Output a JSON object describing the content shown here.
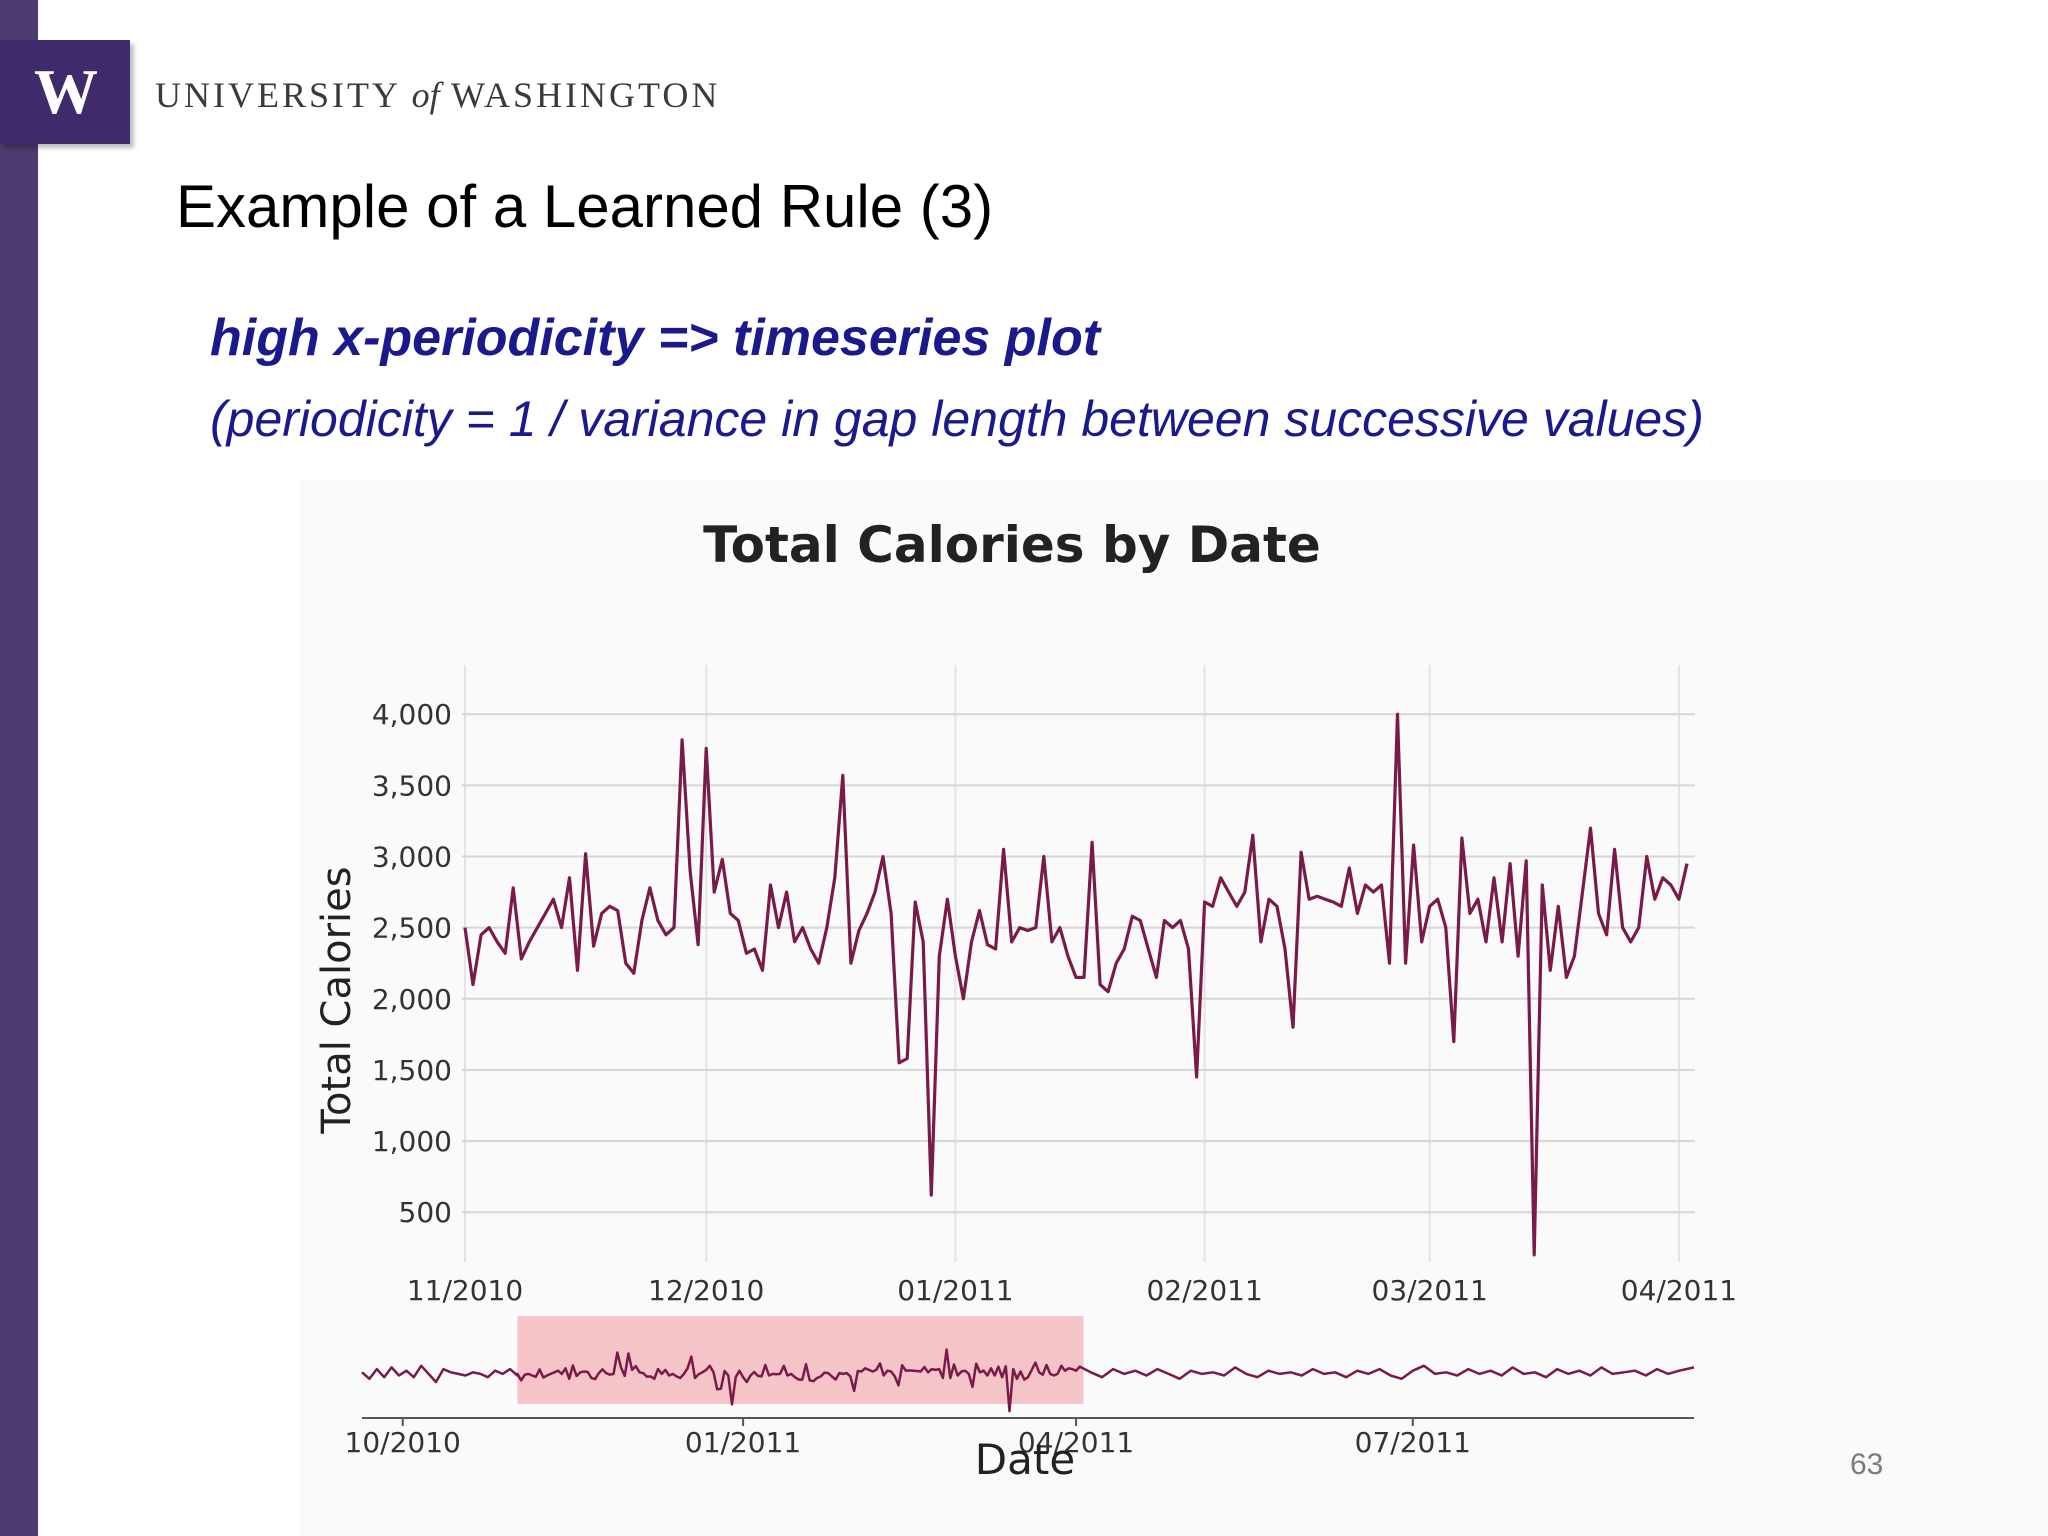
{
  "header": {
    "logo_letter": "W",
    "university_part1": "UNIVERSITY",
    "university_of": "of",
    "university_part2": "WASHINGTON"
  },
  "slide": {
    "title": "Example of a Learned Rule (3)",
    "rule": "high x-periodicity => timeseries plot",
    "note": "(periodicity = 1 / variance in gap length between successive values)",
    "page_number": "63"
  },
  "colors": {
    "sidebar": "#4b3b6e",
    "logo_bg": "#3f2a6b",
    "rule_text": "#1a1a8c",
    "series_line": "#7a1a4a",
    "brush_highlight": "#f5c4c8"
  },
  "chart_data": [
    {
      "type": "line",
      "title": "Total Calories by Date",
      "xlabel": "",
      "ylabel": "Total Calories",
      "x_tick_labels": [
        "11/2010",
        "12/2010",
        "01/2011",
        "02/2011",
        "03/2011",
        "04/2011"
      ],
      "y_ticks": [
        500,
        1000,
        1500,
        2000,
        2500,
        3000,
        3500,
        4000
      ],
      "y_tick_labels": [
        "500",
        "1,000",
        "1,500",
        "2,000",
        "2,500",
        "3,000",
        "3,500",
        "4,000"
      ],
      "ylim": [
        150,
        4100
      ],
      "x_domain": [
        "2010-11-01",
        "2011-04-03"
      ],
      "grid": true,
      "series": [
        {
          "values": [
            [
              "2010-11-01",
              2500
            ],
            [
              "2010-11-02",
              2100
            ],
            [
              "2010-11-03",
              2450
            ],
            [
              "2010-11-04",
              2500
            ],
            [
              "2010-11-05",
              2400
            ],
            [
              "2010-11-06",
              2320
            ],
            [
              "2010-11-07",
              2780
            ],
            [
              "2010-11-08",
              2280
            ],
            [
              "2010-11-09",
              2400
            ],
            [
              "2010-11-10",
              2500
            ],
            [
              "2010-11-11",
              2600
            ],
            [
              "2010-11-12",
              2700
            ],
            [
              "2010-11-13",
              2500
            ],
            [
              "2010-11-14",
              2850
            ],
            [
              "2010-11-15",
              2200
            ],
            [
              "2010-11-16",
              3020
            ],
            [
              "2010-11-17",
              2370
            ],
            [
              "2010-11-18",
              2600
            ],
            [
              "2010-11-19",
              2650
            ],
            [
              "2010-11-20",
              2620
            ],
            [
              "2010-11-21",
              2250
            ],
            [
              "2010-11-22",
              2180
            ],
            [
              "2010-11-23",
              2550
            ],
            [
              "2010-11-24",
              2780
            ],
            [
              "2010-11-25",
              2550
            ],
            [
              "2010-11-26",
              2450
            ],
            [
              "2010-11-27",
              2500
            ],
            [
              "2010-11-28",
              3820
            ],
            [
              "2010-11-29",
              2900
            ],
            [
              "2010-11-30",
              2380
            ],
            [
              "2010-12-01",
              3760
            ],
            [
              "2010-12-02",
              2750
            ],
            [
              "2010-12-03",
              2980
            ],
            [
              "2010-12-04",
              2600
            ],
            [
              "2010-12-05",
              2550
            ],
            [
              "2010-12-06",
              2320
            ],
            [
              "2010-12-07",
              2350
            ],
            [
              "2010-12-08",
              2200
            ],
            [
              "2010-12-09",
              2800
            ],
            [
              "2010-12-10",
              2500
            ],
            [
              "2010-12-11",
              2750
            ],
            [
              "2010-12-12",
              2400
            ],
            [
              "2010-12-13",
              2500
            ],
            [
              "2010-12-14",
              2350
            ],
            [
              "2010-12-15",
              2250
            ],
            [
              "2010-12-16",
              2500
            ],
            [
              "2010-12-17",
              2850
            ],
            [
              "2010-12-18",
              3570
            ],
            [
              "2010-12-19",
              2250
            ],
            [
              "2010-12-20",
              2480
            ],
            [
              "2010-12-21",
              2600
            ],
            [
              "2010-12-22",
              2750
            ],
            [
              "2010-12-23",
              3000
            ],
            [
              "2010-12-24",
              2600
            ],
            [
              "2010-12-25",
              1550
            ],
            [
              "2010-12-26",
              1580
            ],
            [
              "2010-12-27",
              2680
            ],
            [
              "2010-12-28",
              2400
            ],
            [
              "2010-12-29",
              620
            ],
            [
              "2010-12-30",
              2300
            ],
            [
              "2010-12-31",
              2700
            ],
            [
              "2011-01-01",
              2300
            ],
            [
              "2011-01-02",
              2000
            ],
            [
              "2011-01-03",
              2400
            ],
            [
              "2011-01-04",
              2620
            ],
            [
              "2011-01-05",
              2380
            ],
            [
              "2011-01-06",
              2350
            ],
            [
              "2011-01-07",
              3050
            ],
            [
              "2011-01-08",
              2400
            ],
            [
              "2011-01-09",
              2500
            ],
            [
              "2011-01-10",
              2480
            ],
            [
              "2011-01-11",
              2500
            ],
            [
              "2011-01-12",
              3000
            ],
            [
              "2011-01-13",
              2400
            ],
            [
              "2011-01-14",
              2500
            ],
            [
              "2011-01-15",
              2300
            ],
            [
              "2011-01-16",
              2150
            ],
            [
              "2011-01-17",
              2150
            ],
            [
              "2011-01-18",
              3100
            ],
            [
              "2011-01-19",
              2100
            ],
            [
              "2011-01-20",
              2050
            ],
            [
              "2011-01-21",
              2250
            ],
            [
              "2011-01-22",
              2350
            ],
            [
              "2011-01-23",
              2580
            ],
            [
              "2011-01-24",
              2550
            ],
            [
              "2011-01-25",
              2350
            ],
            [
              "2011-01-26",
              2150
            ],
            [
              "2011-01-27",
              2550
            ],
            [
              "2011-01-28",
              2500
            ],
            [
              "2011-01-29",
              2550
            ],
            [
              "2011-01-30",
              2350
            ],
            [
              "2011-01-31",
              1450
            ],
            [
              "2011-02-01",
              2680
            ],
            [
              "2011-02-02",
              2650
            ],
            [
              "2011-02-03",
              2850
            ],
            [
              "2011-02-04",
              2750
            ],
            [
              "2011-02-05",
              2650
            ],
            [
              "2011-02-06",
              2750
            ],
            [
              "2011-02-07",
              3150
            ],
            [
              "2011-02-08",
              2400
            ],
            [
              "2011-02-09",
              2700
            ],
            [
              "2011-02-10",
              2650
            ],
            [
              "2011-02-11",
              2350
            ],
            [
              "2011-02-12",
              1800
            ],
            [
              "2011-02-13",
              3030
            ],
            [
              "2011-02-14",
              2700
            ],
            [
              "2011-02-15",
              2720
            ],
            [
              "2011-02-16",
              2700
            ],
            [
              "2011-02-17",
              2680
            ],
            [
              "2011-02-18",
              2650
            ],
            [
              "2011-02-19",
              2920
            ],
            [
              "2011-02-20",
              2600
            ],
            [
              "2011-02-21",
              2800
            ],
            [
              "2011-02-22",
              2750
            ],
            [
              "2011-02-23",
              2800
            ],
            [
              "2011-02-24",
              2250
            ],
            [
              "2011-02-25",
              4000
            ],
            [
              "2011-02-26",
              2250
            ],
            [
              "2011-02-27",
              3080
            ],
            [
              "2011-02-28",
              2400
            ],
            [
              "2011-03-01",
              2650
            ],
            [
              "2011-03-02",
              2700
            ],
            [
              "2011-03-03",
              2500
            ],
            [
              "2011-03-04",
              1700
            ],
            [
              "2011-03-05",
              3130
            ],
            [
              "2011-03-06",
              2600
            ],
            [
              "2011-03-07",
              2700
            ],
            [
              "2011-03-08",
              2400
            ],
            [
              "2011-03-09",
              2850
            ],
            [
              "2011-03-10",
              2400
            ],
            [
              "2011-03-11",
              2950
            ],
            [
              "2011-03-12",
              2300
            ],
            [
              "2011-03-13",
              2970
            ],
            [
              "2011-03-14",
              200
            ],
            [
              "2011-03-15",
              2800
            ],
            [
              "2011-03-16",
              2200
            ],
            [
              "2011-03-17",
              2650
            ],
            [
              "2011-03-18",
              2150
            ],
            [
              "2011-03-19",
              2300
            ],
            [
              "2011-03-20",
              2750
            ],
            [
              "2011-03-21",
              3200
            ],
            [
              "2011-03-22",
              2600
            ],
            [
              "2011-03-23",
              2450
            ],
            [
              "2011-03-24",
              3050
            ],
            [
              "2011-03-25",
              2500
            ],
            [
              "2011-03-26",
              2400
            ],
            [
              "2011-03-27",
              2500
            ],
            [
              "2011-03-28",
              3000
            ],
            [
              "2011-03-29",
              2700
            ],
            [
              "2011-03-30",
              2850
            ],
            [
              "2011-03-31",
              2800
            ],
            [
              "2011-04-01",
              2700
            ],
            [
              "2011-04-02",
              2950
            ]
          ]
        }
      ]
    },
    {
      "type": "line",
      "title": "",
      "xlabel": "Date",
      "ylabel": "",
      "x_tick_labels": [
        "10/2010",
        "01/2011",
        "04/2011",
        "07/2011"
      ],
      "x_domain": [
        "2010-09-20",
        "2011-09-15"
      ],
      "brush_range": [
        "2010-11-01",
        "2011-04-03"
      ],
      "ylim": [
        150,
        4100
      ],
      "grid": false,
      "series": [
        {
          "values": [
            [
              "2010-09-20",
              2600
            ],
            [
              "2010-09-22",
              2200
            ],
            [
              "2010-09-24",
              2800
            ],
            [
              "2010-09-26",
              2300
            ],
            [
              "2010-09-28",
              2900
            ],
            [
              "2010-09-30",
              2400
            ],
            [
              "2010-10-02",
              2700
            ],
            [
              "2010-10-04",
              2300
            ],
            [
              "2010-10-06",
              3000
            ],
            [
              "2010-10-08",
              2500
            ],
            [
              "2010-10-10",
              2000
            ],
            [
              "2010-10-12",
              2800
            ],
            [
              "2010-10-14",
              2600
            ],
            [
              "2010-10-16",
              2500
            ],
            [
              "2010-10-18",
              2400
            ],
            [
              "2010-10-20",
              2600
            ],
            [
              "2010-10-22",
              2500
            ],
            [
              "2010-10-24",
              2300
            ],
            [
              "2010-10-26",
              2700
            ],
            [
              "2010-10-28",
              2500
            ],
            [
              "2010-10-30",
              2800
            ],
            [
              "2010-11-01",
              2400
            ],
            [
              "2011-04-05",
              2600
            ],
            [
              "2011-04-08",
              2300
            ],
            [
              "2011-04-11",
              2800
            ],
            [
              "2011-04-14",
              2500
            ],
            [
              "2011-04-17",
              2700
            ],
            [
              "2011-04-20",
              2400
            ],
            [
              "2011-04-23",
              2800
            ],
            [
              "2011-04-26",
              2500
            ],
            [
              "2011-04-29",
              2200
            ],
            [
              "2011-05-02",
              2700
            ],
            [
              "2011-05-05",
              2500
            ],
            [
              "2011-05-08",
              2600
            ],
            [
              "2011-05-11",
              2400
            ],
            [
              "2011-05-14",
              2900
            ],
            [
              "2011-05-17",
              2500
            ],
            [
              "2011-05-20",
              2300
            ],
            [
              "2011-05-23",
              2700
            ],
            [
              "2011-05-26",
              2500
            ],
            [
              "2011-05-29",
              2600
            ],
            [
              "2011-06-01",
              2400
            ],
            [
              "2011-06-04",
              2800
            ],
            [
              "2011-06-07",
              2500
            ],
            [
              "2011-06-10",
              2600
            ],
            [
              "2011-06-13",
              2300
            ],
            [
              "2011-06-16",
              2700
            ],
            [
              "2011-06-19",
              2500
            ],
            [
              "2011-06-22",
              2800
            ],
            [
              "2011-06-25",
              2400
            ],
            [
              "2011-06-28",
              2200
            ],
            [
              "2011-07-01",
              2700
            ],
            [
              "2011-07-04",
              3000
            ],
            [
              "2011-07-07",
              2500
            ],
            [
              "2011-07-10",
              2600
            ],
            [
              "2011-07-13",
              2400
            ],
            [
              "2011-07-16",
              2800
            ],
            [
              "2011-07-19",
              2500
            ],
            [
              "2011-07-22",
              2700
            ],
            [
              "2011-07-25",
              2400
            ],
            [
              "2011-07-28",
              2900
            ],
            [
              "2011-07-31",
              2500
            ],
            [
              "2011-08-03",
              2600
            ],
            [
              "2011-08-06",
              2300
            ],
            [
              "2011-08-09",
              2800
            ],
            [
              "2011-08-12",
              2500
            ],
            [
              "2011-08-15",
              2700
            ],
            [
              "2011-08-18",
              2400
            ],
            [
              "2011-08-21",
              2900
            ],
            [
              "2011-08-24",
              2500
            ],
            [
              "2011-08-27",
              2600
            ],
            [
              "2011-08-30",
              2700
            ],
            [
              "2011-09-02",
              2400
            ],
            [
              "2011-09-05",
              2800
            ],
            [
              "2011-09-08",
              2500
            ],
            [
              "2011-09-11",
              2700
            ],
            [
              "2011-09-15",
              2900
            ]
          ]
        }
      ]
    }
  ]
}
